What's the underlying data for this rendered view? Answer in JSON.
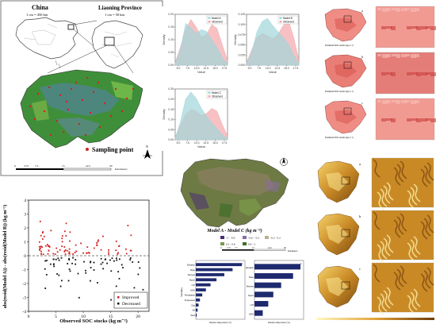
{
  "study_map": {
    "inset_china_title": "China",
    "inset_china_scale": "1 cm = 450 km",
    "inset_province_title": "Liaoning Province",
    "inset_province_scale": "1 cm = 50 km",
    "legend_label": "Sampling point",
    "scale_ticks": [
      "0",
      "3.75",
      "7.5",
      "15",
      "22.5",
      "30"
    ],
    "scale_unit": "Kilometers",
    "north": "N"
  },
  "density_panel": {
    "y_label": "Density",
    "x_label": "Value",
    "colors": {
      "observed": "#f4a6ab",
      "model": "#9fd6da"
    },
    "charts": [
      {
        "legend": [
          "Model A",
          "Observed"
        ],
        "yticks": [
          "0.20",
          "0.15",
          "0.10",
          "0.05",
          "0.00"
        ],
        "xticks": [
          "5.0",
          "7.5",
          "10.0",
          "12.5",
          "15.0",
          "17.5"
        ]
      },
      {
        "legend": [
          "Model B",
          "Observed"
        ],
        "yticks": [
          "0.125",
          "0.100",
          "0.075",
          "0.050",
          "0.025",
          "0.000"
        ],
        "xticks": [
          "5.0",
          "7.5",
          "10.0",
          "12.5",
          "15.0",
          "17.5"
        ]
      },
      {
        "legend": [
          "Model C",
          "Observed"
        ],
        "yticks": [
          "0.25",
          "0.20",
          "0.15",
          "0.10",
          "0.05",
          "0.00"
        ],
        "xticks": [
          "5.0",
          "7.5",
          "10.0",
          "12.5",
          "15.0",
          "17.5"
        ]
      }
    ]
  },
  "soc_maps": {
    "labels": [
      "a",
      "b",
      "c"
    ],
    "caption": "Predicted SOC stocks (kg m⁻²)"
  },
  "scatter_chart": {
    "ylabel": "abs(resid(Model A)) - abs(resid(Model B)) (kg m⁻²)",
    "xlabel": "Observed SOC stocks (kg m⁻²)",
    "xticks": [
      "0",
      "5",
      "10",
      "15",
      "20"
    ],
    "yticks": [
      "4",
      "3",
      "2",
      "1",
      "0",
      "-1",
      "-2",
      "-3",
      "-4"
    ],
    "legend": [
      "Improved",
      "Decreased"
    ],
    "colors": {
      "improved": "#d42020",
      "decreased": "#111111"
    }
  },
  "difference_map": {
    "title": "Model A - Model C (kg m⁻²)",
    "legend": [
      "-2 - -0.6",
      "-0.6 - -0.2",
      "-0.2 - 0.2",
      "0.2 - 0.6",
      "0.6 - 2"
    ],
    "legend_colors": [
      "#4b2d74",
      "#8b6aa8",
      "#b8b090",
      "#7a9a4a",
      "#3f6e2a"
    ],
    "scale_ticks": [
      "0",
      "3.75",
      "7.5",
      "15",
      "22.5",
      "30"
    ],
    "scale_unit": "Kilometers",
    "north": "N"
  },
  "importance_chart": {
    "variables": [
      "Elevation",
      "Slope",
      "Wetness",
      "Aspect",
      "LST",
      "NDVI",
      "Precipitation",
      "Temperature",
      "Clay",
      "Silt",
      "Sand"
    ],
    "a_values": [
      100,
      80,
      62,
      45,
      32,
      22,
      14,
      9,
      6,
      4,
      2
    ],
    "b_values": [
      100,
      84,
      58,
      41,
      30,
      18
    ],
    "labels": [
      "a",
      "b"
    ],
    "ylabel": "Variables",
    "xlabel": "Relative importance (%)",
    "bar_color": "#1e2a6e"
  },
  "terrain_maps": {
    "labels": [
      "a",
      "b",
      "c"
    ]
  }
}
